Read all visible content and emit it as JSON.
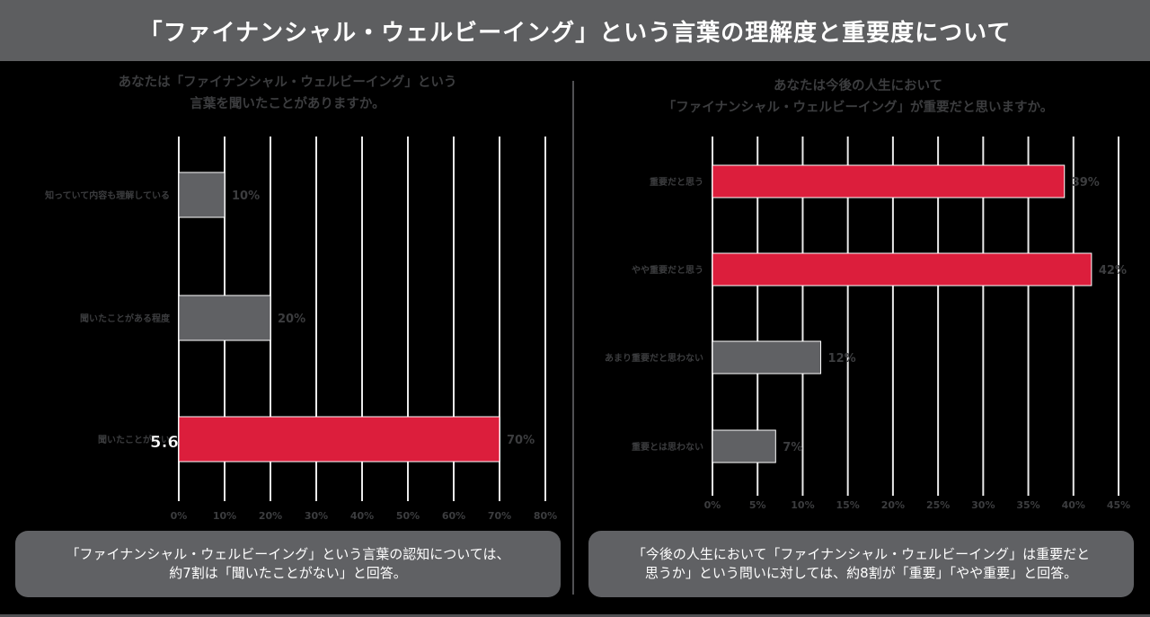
{
  "header": {
    "title": "「ファイナンシャル・ウェルビーイング」という言葉の理解度と重要度について"
  },
  "colors": {
    "accent": "#dc1e3c",
    "gray_bar": "#606164",
    "grid": "#eaeaea",
    "muted_text": "#3c3d3f"
  },
  "left_panel": {
    "question": [
      "あなたは「ファイナンシャル・ウェルビーイング」という",
      "言葉を聞いたことがありますか。"
    ],
    "note": [
      "「ファイナンシャル・ウェルビーイング」という言葉の認知については、",
      "約7割は「聞いたことがない」と回答。"
    ],
    "overlay_value": "5.6"
  },
  "right_panel": {
    "question": [
      "あなたは今後の人生において",
      "「ファイナンシャル・ウェルビーイング」が重要だと思いますか。"
    ],
    "note": [
      "「今後の人生において「ファイナンシャル・ウェルビーイング」は重要だと",
      "思うか」という問いに対しては、約8割が「重要」「やや重要」と回答。"
    ]
  },
  "chart_data": [
    {
      "type": "bar",
      "orientation": "horizontal",
      "title": "あなたは「ファイナンシャル・ウェルビーイング」という言葉を聞いたことがありますか。",
      "categories": [
        "知っていて内容も理解している",
        "聞いたことがある程度",
        "聞いたことがない"
      ],
      "values": [
        10,
        20,
        70
      ],
      "value_labels": [
        "10%",
        "20%",
        "70%"
      ],
      "highlight": [
        false,
        false,
        true
      ],
      "xlim": [
        0,
        80
      ],
      "xticks": [
        0,
        10,
        20,
        30,
        40,
        50,
        60,
        70,
        80
      ],
      "xtick_labels": [
        "0%",
        "10%",
        "20%",
        "30%",
        "40%",
        "50%",
        "60%",
        "70%",
        "80%"
      ],
      "grid": true
    },
    {
      "type": "bar",
      "orientation": "horizontal",
      "title": "あなたは今後の人生において「ファイナンシャル・ウェルビーイング」が重要だと思いますか。",
      "categories": [
        "重要だと思う",
        "やや重要だと思う",
        "あまり重要だと思わない",
        "重要とは思わない"
      ],
      "values": [
        39,
        42,
        12,
        7
      ],
      "value_labels": [
        "39%",
        "42%",
        "12%",
        "7%"
      ],
      "highlight": [
        true,
        true,
        false,
        false
      ],
      "xlim": [
        0,
        45
      ],
      "xticks": [
        0,
        5,
        10,
        15,
        20,
        25,
        30,
        35,
        40,
        45
      ],
      "xtick_labels": [
        "0%",
        "5%",
        "10%",
        "15%",
        "20%",
        "25%",
        "30%",
        "35%",
        "40%",
        "45%"
      ],
      "grid": true
    }
  ]
}
